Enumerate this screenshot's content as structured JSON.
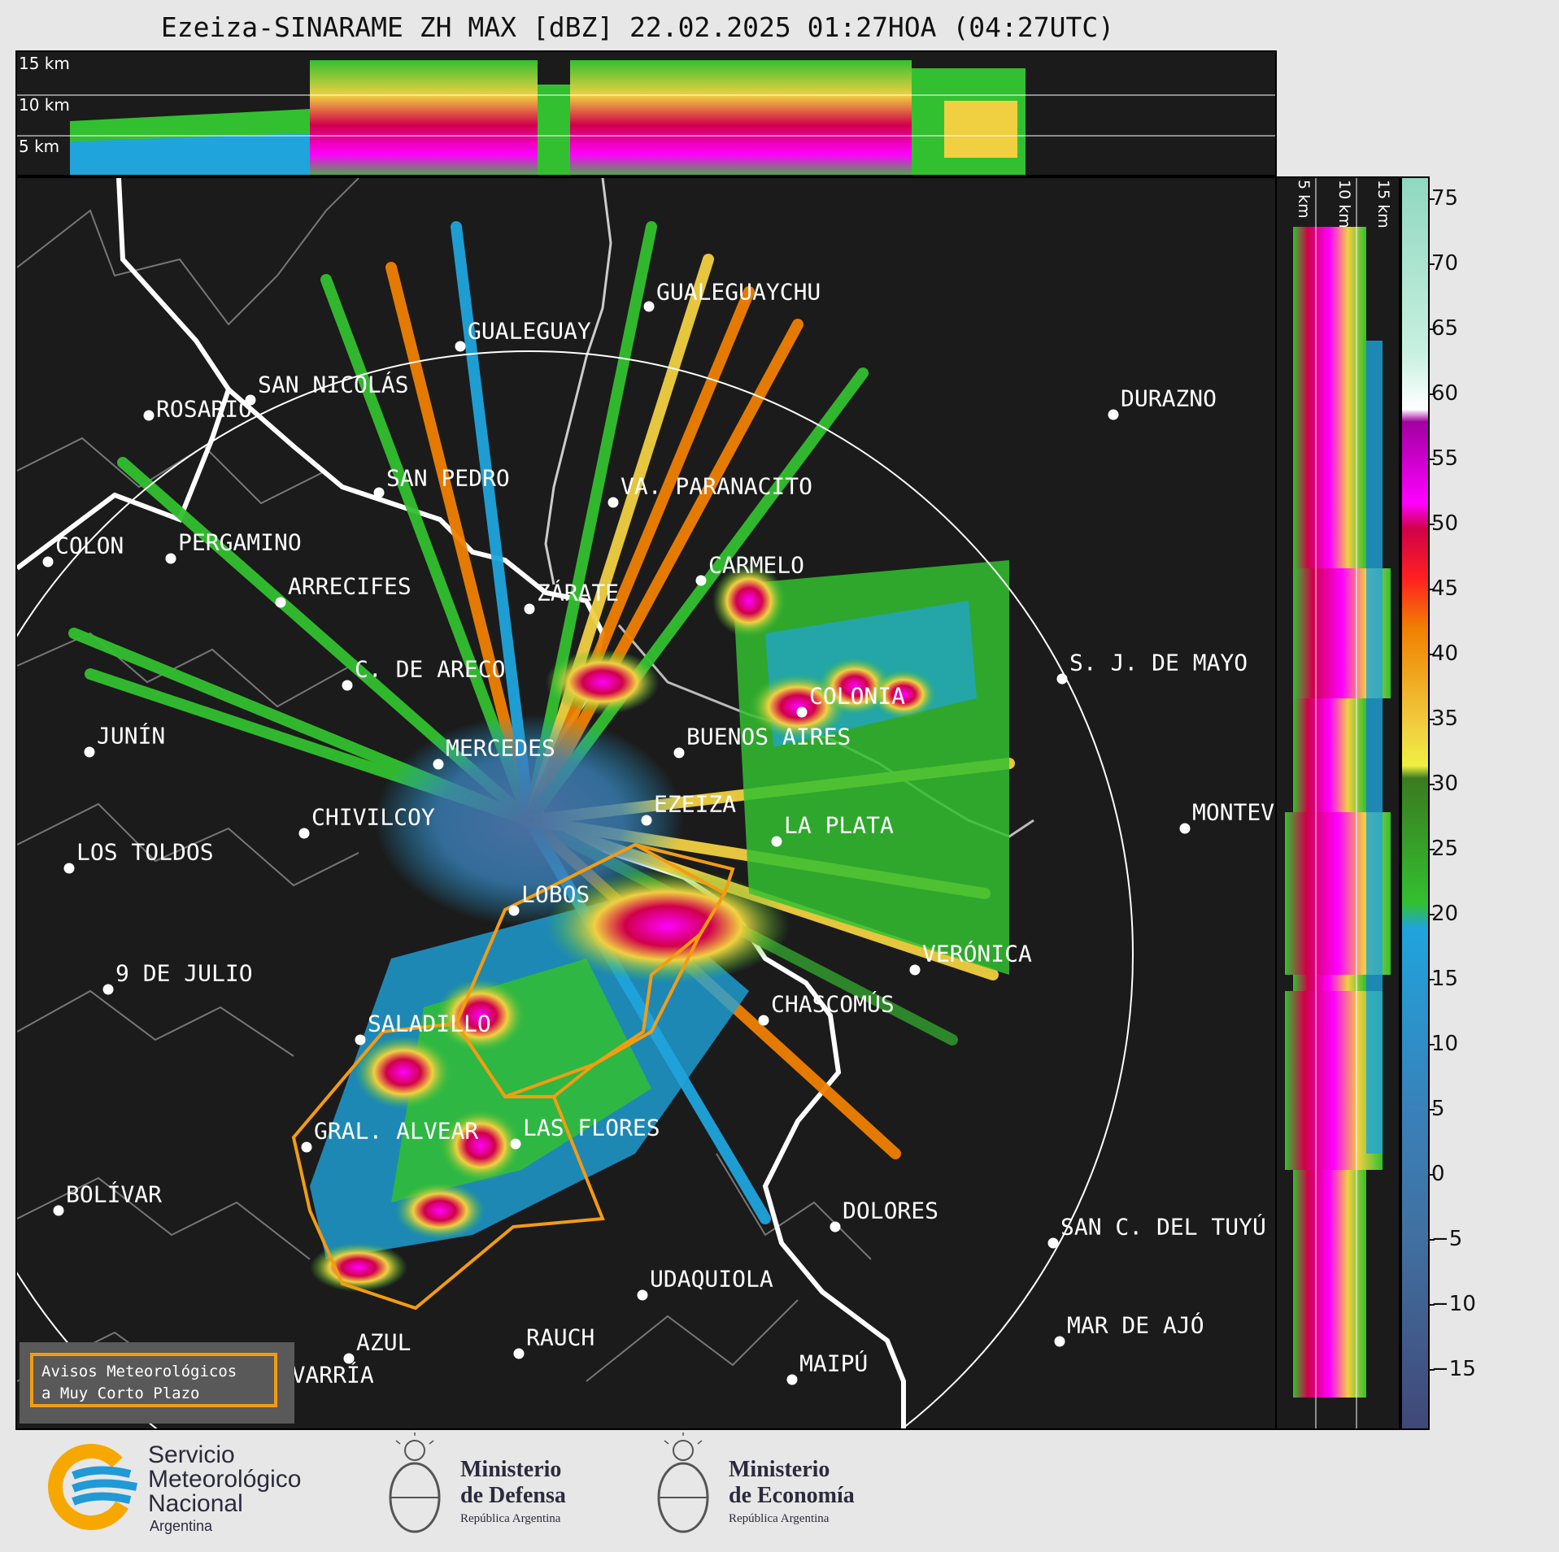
{
  "title": "Ezeiza-SINARAME ZH MAX [dBZ] 22.02.2025 01:27HOA (04:27UTC)",
  "top_panel": {
    "height_labels": [
      "15 km",
      "10 km",
      "5 km"
    ]
  },
  "side_panel": {
    "height_labels": [
      "5 km",
      "10 km",
      "15 km"
    ]
  },
  "colorbar": {
    "unit": "dBZ",
    "ticks": [
      "75",
      "70",
      "65",
      "60",
      "55",
      "50",
      "45",
      "40",
      "35",
      "30",
      "25",
      "20",
      "15",
      "10",
      "5",
      "0",
      "−5",
      "−10",
      "−15"
    ],
    "colors": [
      "#8fd8c0",
      "#c8f0e0",
      "#ffffff",
      "#a000a0",
      "#ff00ff",
      "#d0004a",
      "#ff2020",
      "#f08000",
      "#f0d040",
      "#3a7a20",
      "#33c030",
      "#1fa4dc",
      "#3a80b8",
      "#4070a0",
      "#404878"
    ]
  },
  "radar_site": "EZEIZA",
  "cities": [
    "ROSARIO",
    "GUALEGUAYCHU",
    "GUALEGUAY",
    "SAN NICOLÁS",
    "DURAZNO",
    "SAN PEDRO",
    "VA. PARANACITO",
    "COLON",
    "PERGAMINO",
    "CARMELO",
    "ARRECIFES",
    "ZÁRATE",
    "C. DE ARECO",
    "S. J. DE MAYO",
    "COLONIA",
    "JUNÍN",
    "BUENOS AIRES",
    "MERCEDES",
    "EZEIZA",
    "MONTEV",
    "CHIVILCOY",
    "LA PLATA",
    "LOS TOLDOS",
    "LOBOS",
    "VERÓNICA",
    "9 DE JULIO",
    "SALADILLO",
    "CHASCOMÚS",
    "GRAL. ALVEAR",
    "LAS FLORES",
    "BOLÍVAR",
    "DOLORES",
    "SAN C. DEL TUYÚ",
    "UDAQUIOLA",
    "MAR DE AJÓ",
    "RAUCH",
    "AZUL",
    "OLAVARRÍA",
    "MAIPÚ"
  ],
  "warning_box": {
    "line1": "Avisos Meteorológicos",
    "line2": "a Muy Corto Plazo"
  },
  "logos": {
    "smn": {
      "line1": "Servicio",
      "line2": "Meteorológico",
      "line3": "Nacional",
      "line4": "Argentina"
    },
    "defensa": {
      "line1": "Ministerio",
      "line2": "de Defensa",
      "line3": "República Argentina"
    },
    "economia": {
      "line1": "Ministerio",
      "line2": "de Economía",
      "line3": "República Argentina"
    }
  }
}
